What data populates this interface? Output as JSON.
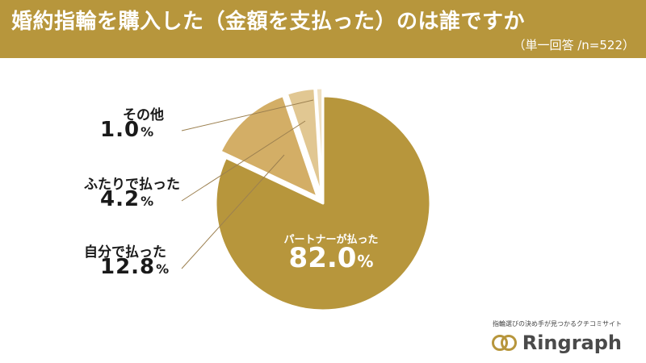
{
  "header": {
    "title": "婚約指輪を購入した（金額を支払った）のは誰ですか",
    "subtitle": "（単一回答 /n=522）"
  },
  "chart_data": {
    "type": "pie",
    "title": "婚約指輪を購入した（金額を支払った）のは誰ですか",
    "subtitle": "（単一回答 /n=522）",
    "unit": "%",
    "slices": [
      {
        "label": "パートナーが払った",
        "value": 82.0,
        "color": "#b7963c",
        "exploded": false
      },
      {
        "label": "自分で払った",
        "value": 12.8,
        "color": "#d3ae66",
        "exploded": true
      },
      {
        "label": "ふたりで払った",
        "value": 4.2,
        "color": "#e1c792",
        "exploded": true
      },
      {
        "label": "その他",
        "value": 1.0,
        "color": "#efe0c2",
        "exploded": true
      }
    ]
  },
  "labels": {
    "main": {
      "name": "パートナーが払った",
      "value": "82.0",
      "unit": "%"
    },
    "other": {
      "name": "その他",
      "value": "1.0",
      "unit": "%"
    },
    "together": {
      "name": "ふたりで払った",
      "value": "4.2",
      "unit": "%"
    },
    "self": {
      "name": "自分で払った",
      "value": "12.8",
      "unit": "%"
    }
  },
  "brand": {
    "tagline": "指輪選びの決め手が見つかるクチコミサイト",
    "name": "Ringraph"
  },
  "colors": {
    "accent": "#b7963c",
    "leader_line": "#9c8050"
  }
}
